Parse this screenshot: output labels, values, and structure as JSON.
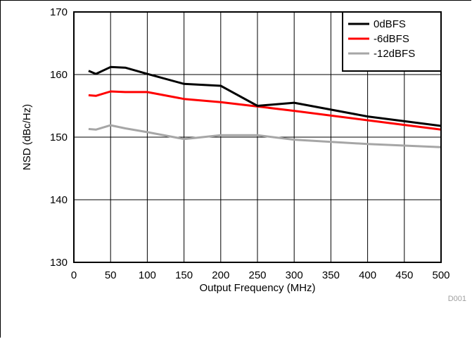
{
  "chart_data": {
    "type": "line",
    "xlabel": "Output Frequency (MHz)",
    "ylabel": "NSD (dBc/Hz)",
    "xlim": [
      0,
      500
    ],
    "ylim": [
      130,
      170
    ],
    "x_ticks": [
      0,
      50,
      100,
      150,
      200,
      250,
      300,
      350,
      400,
      450,
      500
    ],
    "y_ticks": [
      130,
      140,
      150,
      160,
      170
    ],
    "grid": true,
    "legend_position": "top-right",
    "code": "D001",
    "series": [
      {
        "name": "0dBFS",
        "color": "#000000",
        "x": [
          20,
          30,
          50,
          70,
          100,
          150,
          200,
          250,
          300,
          400,
          500
        ],
        "y": [
          160.6,
          160.1,
          161.2,
          161.1,
          160.1,
          158.5,
          158.2,
          155.0,
          155.5,
          153.3,
          151.8
        ]
      },
      {
        "name": "-6dBFS",
        "color": "#ff0000",
        "x": [
          20,
          30,
          50,
          70,
          100,
          150,
          200,
          250,
          300,
          400,
          500
        ],
        "y": [
          156.7,
          156.6,
          157.3,
          157.2,
          157.2,
          156.1,
          155.6,
          154.9,
          154.2,
          152.7,
          151.2
        ]
      },
      {
        "name": "-12dBFS",
        "color": "#a6a6a6",
        "x": [
          20,
          30,
          50,
          70,
          100,
          150,
          200,
          250,
          300,
          400,
          500
        ],
        "y": [
          151.3,
          151.2,
          151.9,
          151.4,
          150.8,
          149.7,
          150.3,
          150.3,
          149.6,
          148.9,
          148.4
        ]
      }
    ]
  }
}
